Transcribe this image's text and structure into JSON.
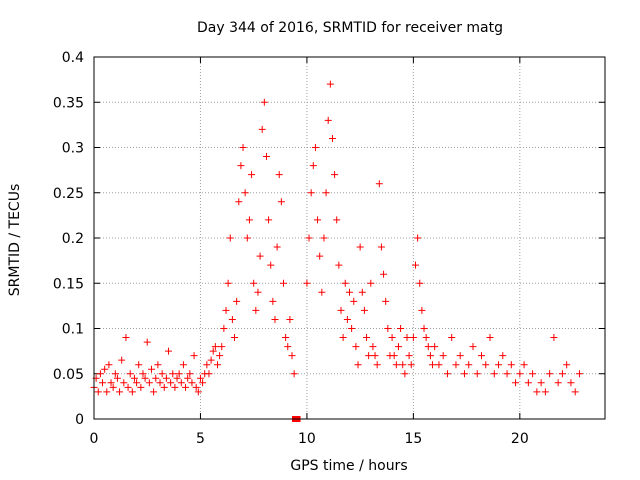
{
  "colors": {
    "series": "#ff0000",
    "grid": "#a0a0a0",
    "axis": "#000000",
    "background": "#ffffff"
  },
  "chart_data": {
    "type": "scatter",
    "title": "Day 344 of 2016, SRMTID for receiver matg",
    "xlabel": "GPS time / hours",
    "ylabel": "SRMTID / TECUs",
    "xlim": [
      0,
      24
    ],
    "ylim": [
      0,
      0.4
    ],
    "x_ticks": [
      0,
      5,
      10,
      15,
      20
    ],
    "x_tick_labels": [
      "0",
      "5",
      "10",
      "15",
      "20"
    ],
    "y_ticks": [
      0,
      0.05,
      0.1,
      0.15,
      0.2,
      0.25,
      0.3,
      0.35,
      0.4
    ],
    "y_tick_labels": [
      "0",
      "0.05",
      "0.1",
      "0.15",
      "0.2",
      "0.25",
      "0.3",
      "0.35",
      "0.4"
    ],
    "grid": true,
    "marker": "plus",
    "series": [
      {
        "name": "SRMTID",
        "points": [
          [
            0.0,
            0.035
          ],
          [
            0.1,
            0.045
          ],
          [
            0.2,
            0.03
          ],
          [
            0.3,
            0.05
          ],
          [
            0.4,
            0.04
          ],
          [
            0.5,
            0.055
          ],
          [
            0.6,
            0.03
          ],
          [
            0.7,
            0.06
          ],
          [
            0.8,
            0.04
          ],
          [
            0.9,
            0.035
          ],
          [
            1.0,
            0.05
          ],
          [
            1.1,
            0.045
          ],
          [
            1.2,
            0.03
          ],
          [
            1.3,
            0.065
          ],
          [
            1.4,
            0.04
          ],
          [
            1.5,
            0.09
          ],
          [
            1.6,
            0.035
          ],
          [
            1.7,
            0.05
          ],
          [
            1.8,
            0.03
          ],
          [
            1.9,
            0.045
          ],
          [
            2.0,
            0.04
          ],
          [
            2.1,
            0.06
          ],
          [
            2.2,
            0.035
          ],
          [
            2.3,
            0.05
          ],
          [
            2.4,
            0.045
          ],
          [
            2.5,
            0.085
          ],
          [
            2.6,
            0.04
          ],
          [
            2.7,
            0.055
          ],
          [
            2.8,
            0.03
          ],
          [
            2.9,
            0.045
          ],
          [
            3.0,
            0.06
          ],
          [
            3.1,
            0.04
          ],
          [
            3.2,
            0.05
          ],
          [
            3.3,
            0.035
          ],
          [
            3.4,
            0.045
          ],
          [
            3.5,
            0.075
          ],
          [
            3.6,
            0.04
          ],
          [
            3.7,
            0.05
          ],
          [
            3.8,
            0.035
          ],
          [
            3.9,
            0.045
          ],
          [
            4.0,
            0.05
          ],
          [
            4.1,
            0.04
          ],
          [
            4.2,
            0.06
          ],
          [
            4.3,
            0.035
          ],
          [
            4.4,
            0.045
          ],
          [
            4.5,
            0.05
          ],
          [
            4.6,
            0.04
          ],
          [
            4.7,
            0.07
          ],
          [
            4.8,
            0.035
          ],
          [
            4.9,
            0.03
          ],
          [
            5.0,
            0.045
          ],
          [
            5.1,
            0.04
          ],
          [
            5.2,
            0.05
          ],
          [
            5.3,
            0.06
          ],
          [
            5.4,
            0.05
          ],
          [
            5.5,
            0.065
          ],
          [
            5.6,
            0.075
          ],
          [
            5.7,
            0.08
          ],
          [
            5.8,
            0.06
          ],
          [
            5.9,
            0.07
          ],
          [
            6.0,
            0.08
          ],
          [
            6.1,
            0.1
          ],
          [
            6.2,
            0.12
          ],
          [
            6.3,
            0.15
          ],
          [
            6.4,
            0.2
          ],
          [
            6.5,
            0.11
          ],
          [
            6.6,
            0.09
          ],
          [
            6.7,
            0.13
          ],
          [
            6.8,
            0.24
          ],
          [
            6.9,
            0.28
          ],
          [
            7.0,
            0.3
          ],
          [
            7.1,
            0.25
          ],
          [
            7.2,
            0.2
          ],
          [
            7.3,
            0.22
          ],
          [
            7.4,
            0.27
          ],
          [
            7.5,
            0.15
          ],
          [
            7.6,
            0.12
          ],
          [
            7.7,
            0.14
          ],
          [
            7.8,
            0.18
          ],
          [
            7.9,
            0.32
          ],
          [
            8.0,
            0.35
          ],
          [
            8.1,
            0.29
          ],
          [
            8.2,
            0.22
          ],
          [
            8.3,
            0.17
          ],
          [
            8.4,
            0.13
          ],
          [
            8.5,
            0.11
          ],
          [
            8.6,
            0.19
          ],
          [
            8.7,
            0.27
          ],
          [
            8.8,
            0.24
          ],
          [
            8.9,
            0.15
          ],
          [
            9.0,
            0.09
          ],
          [
            9.1,
            0.08
          ],
          [
            9.2,
            0.11
          ],
          [
            9.3,
            0.07
          ],
          [
            9.4,
            0.05
          ],
          [
            10.0,
            0.15
          ],
          [
            10.1,
            0.2
          ],
          [
            10.2,
            0.25
          ],
          [
            10.3,
            0.28
          ],
          [
            10.4,
            0.3
          ],
          [
            10.5,
            0.22
          ],
          [
            10.6,
            0.18
          ],
          [
            10.7,
            0.14
          ],
          [
            10.8,
            0.2
          ],
          [
            10.9,
            0.25
          ],
          [
            11.0,
            0.33
          ],
          [
            11.1,
            0.37
          ],
          [
            11.2,
            0.31
          ],
          [
            11.3,
            0.27
          ],
          [
            11.4,
            0.22
          ],
          [
            11.5,
            0.17
          ],
          [
            11.6,
            0.12
          ],
          [
            11.7,
            0.09
          ],
          [
            11.8,
            0.15
          ],
          [
            11.9,
            0.11
          ],
          [
            12.0,
            0.14
          ],
          [
            12.1,
            0.1
          ],
          [
            12.2,
            0.13
          ],
          [
            12.3,
            0.08
          ],
          [
            12.4,
            0.06
          ],
          [
            12.5,
            0.19
          ],
          [
            12.6,
            0.14
          ],
          [
            12.7,
            0.12
          ],
          [
            12.8,
            0.09
          ],
          [
            12.9,
            0.07
          ],
          [
            13.0,
            0.15
          ],
          [
            13.1,
            0.08
          ],
          [
            13.2,
            0.07
          ],
          [
            13.3,
            0.06
          ],
          [
            13.4,
            0.26
          ],
          [
            13.5,
            0.19
          ],
          [
            13.6,
            0.16
          ],
          [
            13.7,
            0.13
          ],
          [
            13.8,
            0.1
          ],
          [
            13.9,
            0.07
          ],
          [
            14.0,
            0.09
          ],
          [
            14.1,
            0.07
          ],
          [
            14.2,
            0.06
          ],
          [
            14.3,
            0.08
          ],
          [
            14.4,
            0.1
          ],
          [
            14.5,
            0.06
          ],
          [
            14.6,
            0.05
          ],
          [
            14.7,
            0.09
          ],
          [
            14.8,
            0.07
          ],
          [
            14.9,
            0.06
          ],
          [
            15.0,
            0.09
          ],
          [
            15.1,
            0.17
          ],
          [
            15.2,
            0.2
          ],
          [
            15.3,
            0.15
          ],
          [
            15.4,
            0.12
          ],
          [
            15.5,
            0.1
          ],
          [
            15.6,
            0.09
          ],
          [
            15.7,
            0.08
          ],
          [
            15.8,
            0.07
          ],
          [
            15.9,
            0.06
          ],
          [
            16.0,
            0.08
          ],
          [
            16.2,
            0.06
          ],
          [
            16.4,
            0.07
          ],
          [
            16.6,
            0.05
          ],
          [
            16.8,
            0.09
          ],
          [
            17.0,
            0.06
          ],
          [
            17.2,
            0.07
          ],
          [
            17.4,
            0.05
          ],
          [
            17.6,
            0.06
          ],
          [
            17.8,
            0.08
          ],
          [
            18.0,
            0.05
          ],
          [
            18.2,
            0.07
          ],
          [
            18.4,
            0.06
          ],
          [
            18.6,
            0.09
          ],
          [
            18.8,
            0.05
          ],
          [
            19.0,
            0.06
          ],
          [
            19.2,
            0.07
          ],
          [
            19.4,
            0.05
          ],
          [
            19.6,
            0.06
          ],
          [
            19.8,
            0.04
          ],
          [
            20.0,
            0.05
          ],
          [
            20.2,
            0.06
          ],
          [
            20.4,
            0.04
          ],
          [
            20.6,
            0.05
          ],
          [
            20.8,
            0.03
          ],
          [
            21.0,
            0.04
          ],
          [
            21.2,
            0.03
          ],
          [
            21.4,
            0.05
          ],
          [
            21.6,
            0.09
          ],
          [
            21.8,
            0.04
          ],
          [
            22.0,
            0.05
          ],
          [
            22.2,
            0.06
          ],
          [
            22.4,
            0.04
          ],
          [
            22.6,
            0.03
          ],
          [
            22.8,
            0.05
          ]
        ]
      }
    ],
    "gap_markers": [
      {
        "x_start": 9.3,
        "x_end": 9.7,
        "y": 0
      }
    ]
  }
}
